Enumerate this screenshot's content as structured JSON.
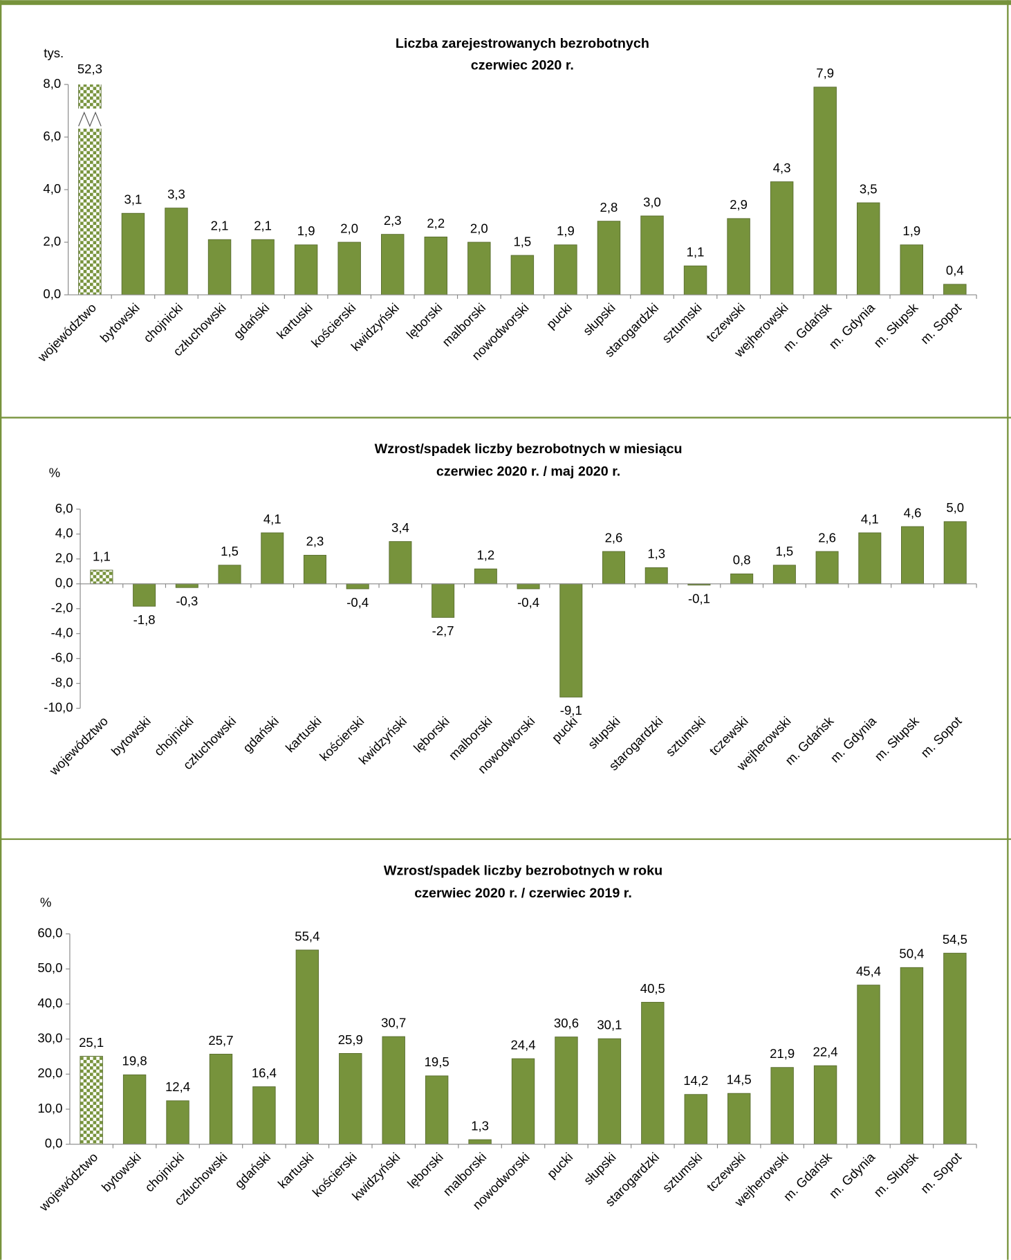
{
  "chart_data": [
    {
      "type": "bar",
      "title": "Liczba zarejestrowanych bezrobotnych",
      "subtitle": "czerwiec 2020 r.",
      "unit": "tys.",
      "categories": [
        "województwo",
        "bytowski",
        "chojnicki",
        "człuchowski",
        "gdański",
        "kartuski",
        "kościerski",
        "kwidzyński",
        "lęborski",
        "malborski",
        "nowodworski",
        "pucki",
        "słupski",
        "starogardzki",
        "sztumski",
        "tczewski",
        "wejherowski",
        "m. Gdańsk",
        "m. Gdynia",
        "m. Słupsk",
        "m. Sopot"
      ],
      "values": [
        52.3,
        3.1,
        3.3,
        2.1,
        2.1,
        1.9,
        2.0,
        2.3,
        2.2,
        2.0,
        1.5,
        1.9,
        2.8,
        3.0,
        1.1,
        2.9,
        4.3,
        7.9,
        3.5,
        1.9,
        0.4
      ],
      "value_labels": [
        "52,3",
        "3,1",
        "3,3",
        "2,1",
        "2,1",
        "1,9",
        "2,0",
        "2,3",
        "2,2",
        "2,0",
        "1,5",
        "1,9",
        "2,8",
        "3,0",
        "1,1",
        "2,9",
        "4,3",
        "7,9",
        "3,5",
        "1,9",
        "0,4"
      ],
      "color": "#77933c",
      "first_bar_fill": "checker",
      "ylim": [
        0,
        8
      ],
      "yticks": [
        {
          "value": 0,
          "label": "0,0"
        },
        {
          "value": 2,
          "label": "2,0"
        },
        {
          "value": 4,
          "label": "4,0"
        },
        {
          "value": 6,
          "label": "6,0"
        },
        {
          "value": 8,
          "label": "8,0"
        }
      ]
    },
    {
      "type": "bar",
      "title": "Wzrost/spadek liczby bezrobotnych w miesiącu",
      "subtitle": "czerwiec 2020 r. / maj 2020 r.",
      "unit": "%",
      "categories": [
        "województwo",
        "bytowski",
        "chojnicki",
        "człuchowski",
        "gdański",
        "kartuski",
        "kościerski",
        "kwidzyński",
        "lęborski",
        "malborski",
        "nowodworski",
        "pucki",
        "słupski",
        "starogardzki",
        "sztumski",
        "tczewski",
        "wejherowski",
        "m. Gdańsk",
        "m. Gdynia",
        "m. Słupsk",
        "m. Sopot"
      ],
      "values": [
        1.1,
        -1.8,
        -0.3,
        1.5,
        4.1,
        2.3,
        -0.4,
        3.4,
        -2.7,
        1.2,
        -0.4,
        -9.1,
        2.6,
        1.3,
        -0.1,
        0.8,
        1.5,
        2.6,
        4.1,
        4.6,
        5.0
      ],
      "value_labels": [
        "1,1",
        "-1,8",
        "-0,3",
        "1,5",
        "4,1",
        "2,3",
        "-0,4",
        "3,4",
        "-2,7",
        "1,2",
        "-0,4",
        "-9,1",
        "2,6",
        "1,3",
        "-0,1",
        "0,8",
        "1,5",
        "2,6",
        "4,1",
        "4,6",
        "5,0"
      ],
      "color": "#77933c",
      "first_bar_fill": "checker",
      "ylim": [
        -10,
        6
      ],
      "yticks": [
        {
          "value": -10,
          "label": "-10,0"
        },
        {
          "value": -8,
          "label": "-8,0"
        },
        {
          "value": -6,
          "label": "-6,0"
        },
        {
          "value": -4,
          "label": "-4,0"
        },
        {
          "value": -2,
          "label": "-2,0"
        },
        {
          "value": 0,
          "label": "0,0"
        },
        {
          "value": 2,
          "label": "2,0"
        },
        {
          "value": 4,
          "label": "4,0"
        },
        {
          "value": 6,
          "label": "6,0"
        }
      ]
    },
    {
      "type": "bar",
      "title": "Wzrost/spadek liczby bezrobotnych w roku",
      "subtitle": "czerwiec 2020 r. / czerwiec 2019 r.",
      "unit": "%",
      "categories": [
        "województwo",
        "bytowski",
        "chojnicki",
        "człuchowski",
        "gdański",
        "kartuski",
        "kościerski",
        "kwidzyński",
        "lęborski",
        "malborski",
        "nowodworski",
        "pucki",
        "słupski",
        "starogardzki",
        "sztumski",
        "tczewski",
        "wejherowski",
        "m. Gdańsk",
        "m. Gdynia",
        "m. Słupsk",
        "m. Sopot"
      ],
      "values": [
        25.1,
        19.8,
        12.4,
        25.7,
        16.4,
        55.4,
        25.9,
        30.7,
        19.5,
        1.3,
        24.4,
        30.6,
        30.1,
        40.5,
        14.2,
        14.5,
        21.9,
        22.4,
        45.4,
        50.4,
        54.5
      ],
      "value_labels": [
        "25,1",
        "19,8",
        "12,4",
        "25,7",
        "16,4",
        "55,4",
        "25,9",
        "30,7",
        "19,5",
        "1,3",
        "24,4",
        "30,6",
        "30,1",
        "40,5",
        "14,2",
        "14,5",
        "21,9",
        "22,4",
        "45,4",
        "50,4",
        "54,5"
      ],
      "color": "#77933c",
      "first_bar_fill": "checker",
      "ylim": [
        0,
        60
      ],
      "yticks": [
        {
          "value": 0,
          "label": "0,0"
        },
        {
          "value": 10,
          "label": "10,0"
        },
        {
          "value": 20,
          "label": "20,0"
        },
        {
          "value": 30,
          "label": "30,0"
        },
        {
          "value": 40,
          "label": "40,0"
        },
        {
          "value": 50,
          "label": "50,0"
        },
        {
          "value": 60,
          "label": "60,0"
        }
      ]
    }
  ]
}
